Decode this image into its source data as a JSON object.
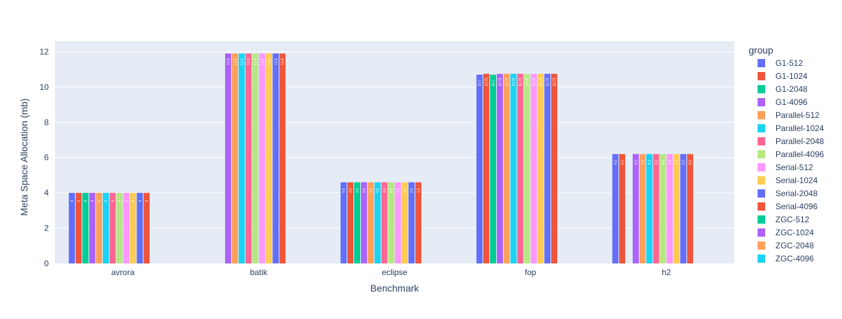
{
  "chart_data": {
    "type": "bar",
    "barmode": "group",
    "xlabel": "Benchmark",
    "ylabel": "Meta Space Allocation (mb)",
    "ylim": [
      0,
      12.6
    ],
    "yticks": [
      "0",
      "2",
      "4",
      "6",
      "8",
      "10",
      "12"
    ],
    "grid": true,
    "legend_title": "group",
    "legend_position": "right",
    "categories": [
      "avrora",
      "batik",
      "eclipse",
      "fop",
      "h2"
    ],
    "series": [
      {
        "name": "G1-512",
        "color": "#636efa",
        "values": [
          4,
          null,
          4.6,
          10.7,
          6.2
        ],
        "labels": [
          "4",
          "",
          "4.6",
          "10.7",
          "6.2"
        ]
      },
      {
        "name": "G1-1024",
        "color": "#EF553B",
        "values": [
          4,
          null,
          4.6,
          10.75,
          6.2
        ],
        "labels": [
          "4",
          "",
          "4.6",
          "10.75",
          "6.2"
        ]
      },
      {
        "name": "G1-2048",
        "color": "#00cc96",
        "values": [
          4,
          null,
          4.6,
          10.7,
          null
        ],
        "labels": [
          "4",
          "",
          "4.6",
          "10.7",
          ""
        ]
      },
      {
        "name": "G1-4096",
        "color": "#ab63fa",
        "values": [
          4,
          11.9,
          4.6,
          10.75,
          6.2
        ],
        "labels": [
          "4",
          "11.9",
          "4.6",
          "10.75",
          "6.2"
        ]
      },
      {
        "name": "Parallel-512",
        "color": "#FFA15A",
        "values": [
          4,
          11.9,
          4.6,
          10.75,
          6.2
        ],
        "labels": [
          "4",
          "11.9",
          "4.6",
          "10.75",
          "6.2"
        ]
      },
      {
        "name": "Parallel-1024",
        "color": "#19d3f3",
        "values": [
          4,
          11.9,
          4.6,
          10.75,
          6.2
        ],
        "labels": [
          "4",
          "11.9",
          "4.6",
          "10.75",
          "6.2"
        ]
      },
      {
        "name": "Parallel-2048",
        "color": "#FF6692",
        "values": [
          4,
          11.9,
          4.6,
          10.75,
          6.2
        ],
        "labels": [
          "4",
          "11.9",
          "4.6",
          "10.75",
          "6.2"
        ]
      },
      {
        "name": "Parallel-4096",
        "color": "#B6E880",
        "values": [
          4,
          11.9,
          4.6,
          10.75,
          6.2
        ],
        "labels": [
          "4",
          "11.9",
          "4.6",
          "10.75",
          "6.2"
        ]
      },
      {
        "name": "Serial-512",
        "color": "#FF97FF",
        "values": [
          4,
          11.9,
          4.6,
          10.75,
          6.2
        ],
        "labels": [
          "4",
          "11.9",
          "4.6",
          "10.75",
          "6.2"
        ]
      },
      {
        "name": "Serial-1024",
        "color": "#FECB52",
        "values": [
          4,
          11.9,
          4.6,
          10.75,
          6.2
        ],
        "labels": [
          "4",
          "11.9",
          "4.6",
          "10.75",
          "6.2"
        ]
      },
      {
        "name": "Serial-2048",
        "color": "#636efa",
        "values": [
          4,
          11.9,
          4.6,
          10.75,
          6.2
        ],
        "labels": [
          "4",
          "11.9",
          "4.6",
          "10.75",
          "6.2"
        ]
      },
      {
        "name": "Serial-4096",
        "color": "#EF553B",
        "values": [
          4,
          11.9,
          4.6,
          10.75,
          6.2
        ],
        "labels": [
          "4",
          "11.9",
          "4.6",
          "10.75",
          "6.2"
        ]
      },
      {
        "name": "ZGC-512",
        "color": "#00cc96",
        "values": [
          null,
          null,
          null,
          null,
          null
        ],
        "labels": [
          "",
          "",
          "",
          "",
          ""
        ]
      },
      {
        "name": "ZGC-1024",
        "color": "#ab63fa",
        "values": [
          null,
          null,
          null,
          null,
          null
        ],
        "labels": [
          "",
          "",
          "",
          "",
          ""
        ]
      },
      {
        "name": "ZGC-2048",
        "color": "#FFA15A",
        "values": [
          null,
          null,
          null,
          null,
          null
        ],
        "labels": [
          "",
          "",
          "",
          "",
          ""
        ]
      },
      {
        "name": "ZGC-4096",
        "color": "#19d3f3",
        "values": [
          null,
          null,
          null,
          null,
          null
        ],
        "labels": [
          "",
          "",
          "",
          "",
          ""
        ]
      }
    ],
    "colors": {
      "plot_background": "#E5ECF6",
      "paper_background": "#ffffff",
      "gridline": "#ffffff",
      "text": "#2a3f5f"
    }
  }
}
